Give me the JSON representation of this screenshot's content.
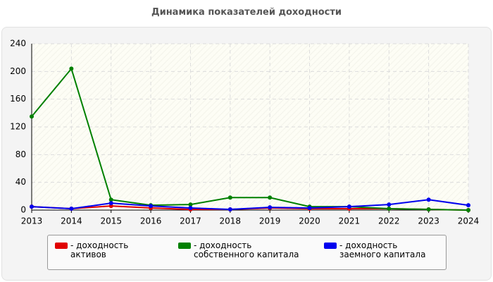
{
  "chart_data": {
    "type": "line",
    "title": "Динамика показателей доходности",
    "categories": [
      "2013",
      "2014",
      "2015",
      "2016",
      "2017",
      "2018",
      "2019",
      "2020",
      "2021",
      "2022",
      "2023",
      "2024"
    ],
    "series": [
      {
        "name": "- доходность активов",
        "color": "#e00000",
        "values": [
          5,
          2,
          6,
          3,
          1,
          1,
          3,
          2,
          2,
          2,
          1,
          0
        ]
      },
      {
        "name": "- доходность собственного капитала",
        "color": "#008000",
        "values": [
          135,
          204,
          15,
          7,
          8,
          18,
          18,
          5,
          5,
          2,
          1,
          0
        ]
      },
      {
        "name": "- доходность заемного капитала",
        "color": "#0000ee",
        "values": [
          5,
          2,
          10,
          6,
          3,
          1,
          4,
          3,
          5,
          8,
          15,
          7
        ]
      }
    ],
    "ylim": [
      0,
      240
    ],
    "yticks": [
      0,
      40,
      80,
      120,
      160,
      200,
      240
    ],
    "grid": true
  }
}
